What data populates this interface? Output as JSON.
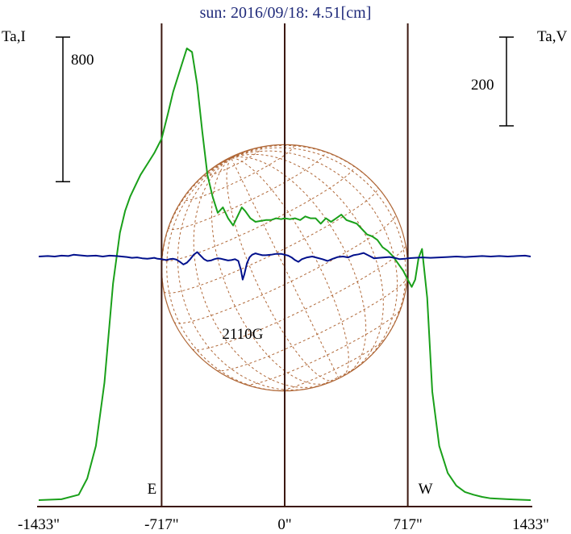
{
  "chart_data": {
    "type": "line",
    "title": "sun: 2016/09/18: 4.51[cm]",
    "left_axis_label": "Ta,I",
    "right_axis_label": "Ta,V",
    "x_tick_labels": [
      "-1433\"",
      "-717\"",
      "0\"",
      "717\"",
      "1433\""
    ],
    "x_ticks": [
      -1433,
      -717,
      0,
      717,
      1433
    ],
    "xlim": [
      -1433,
      1433
    ],
    "limb_markers": [
      {
        "label": "E",
        "x": -717
      },
      {
        "label": "W",
        "x": 717
      }
    ],
    "scale_bars": [
      {
        "axis": "left",
        "label": "800",
        "value": 800
      },
      {
        "axis": "right",
        "label": "200",
        "value": 200
      }
    ],
    "annotations": [
      {
        "text": "2110G",
        "x": -245
      }
    ],
    "colors": {
      "intensity": "#1aa01a",
      "polarization": "#00108c",
      "frame": "#3c1810",
      "disk": "#b06838",
      "title": "#1f2a7a"
    },
    "series": [
      {
        "name": "",
        "role": "I",
        "x": [
          -1433,
          -1300,
          -1200,
          -1150,
          -1100,
          -1050,
          -1000,
          -960,
          -930,
          -900,
          -870,
          -840,
          -800,
          -760,
          -717,
          -680,
          -650,
          -600,
          -570,
          -540,
          -510,
          -480,
          -450,
          -420,
          -390,
          -360,
          -330,
          -300,
          -270,
          -250,
          -230,
          -200,
          -170,
          -140,
          -110,
          -80,
          -50,
          -20,
          0,
          30,
          60,
          90,
          120,
          150,
          180,
          210,
          240,
          270,
          300,
          330,
          360,
          390,
          420,
          450,
          480,
          510,
          540,
          570,
          600,
          630,
          660,
          690,
          717,
          740,
          760,
          780,
          800,
          830,
          860,
          900,
          950,
          1000,
          1050,
          1100,
          1150,
          1200,
          1300,
          1433
        ],
        "values": [
          0,
          5,
          30,
          120,
          300,
          650,
          1200,
          1480,
          1600,
          1680,
          1740,
          1800,
          1860,
          1920,
          2000,
          2140,
          2260,
          2410,
          2500,
          2480,
          2300,
          2040,
          1800,
          1680,
          1590,
          1620,
          1560,
          1520,
          1580,
          1620,
          1600,
          1560,
          1540,
          1545,
          1550,
          1550,
          1560,
          1555,
          1560,
          1555,
          1560,
          1550,
          1570,
          1560,
          1560,
          1530,
          1560,
          1540,
          1560,
          1580,
          1550,
          1540,
          1530,
          1500,
          1470,
          1460,
          1440,
          1400,
          1380,
          1350,
          1310,
          1270,
          1220,
          1180,
          1220,
          1340,
          1390,
          1120,
          600,
          300,
          150,
          80,
          45,
          30,
          18,
          10,
          5,
          0
        ]
      },
      {
        "name": "",
        "role": "V",
        "x": [
          -1433,
          -1380,
          -1340,
          -1300,
          -1260,
          -1230,
          -1200,
          -1150,
          -1100,
          -1060,
          -1020,
          -980,
          -950,
          -920,
          -890,
          -860,
          -830,
          -800,
          -780,
          -760,
          -740,
          -717,
          -690,
          -670,
          -650,
          -630,
          -610,
          -590,
          -570,
          -550,
          -530,
          -510,
          -490,
          -470,
          -450,
          -430,
          -410,
          -390,
          -370,
          -350,
          -330,
          -310,
          -290,
          -270,
          -255,
          -245,
          -235,
          -220,
          -205,
          -190,
          -170,
          -150,
          -130,
          -110,
          -80,
          -50,
          -20,
          0,
          20,
          40,
          60,
          80,
          100,
          130,
          160,
          190,
          220,
          250,
          280,
          310,
          340,
          370,
          400,
          430,
          460,
          490,
          520,
          550,
          580,
          610,
          640,
          670,
          700,
          717,
          760,
          800,
          850,
          900,
          950,
          1000,
          1050,
          1100,
          1150,
          1200,
          1250,
          1300,
          1350,
          1400,
          1433
        ],
        "values": [
          0,
          1,
          0,
          2,
          1,
          4,
          3,
          1,
          2,
          0,
          2,
          1,
          0,
          -1,
          -3,
          -2,
          -4,
          -5,
          -4,
          -3,
          -5,
          -6,
          -8,
          -6,
          -5,
          -7,
          -12,
          -18,
          -14,
          -6,
          4,
          10,
          2,
          -6,
          -10,
          -9,
          -6,
          -4,
          -5,
          -7,
          -9,
          -8,
          -6,
          -10,
          -30,
          -52,
          -40,
          -15,
          -2,
          4,
          7,
          5,
          3,
          3,
          4,
          6,
          6,
          4,
          2,
          -2,
          -8,
          -12,
          -6,
          -2,
          0,
          -3,
          -6,
          -10,
          -5,
          -1,
          0,
          -2,
          3,
          5,
          8,
          2,
          -4,
          -3,
          -2,
          -1,
          -3,
          -6,
          -5,
          -4,
          -3,
          -2,
          -3,
          -2,
          -1,
          0,
          -1,
          0,
          1,
          0,
          1,
          0,
          1,
          2,
          0
        ]
      }
    ]
  }
}
